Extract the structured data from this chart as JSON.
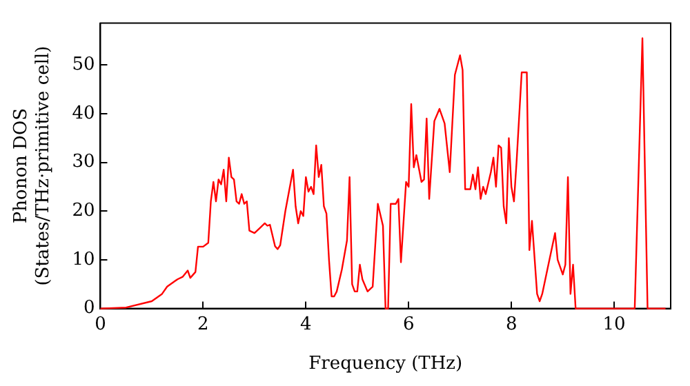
{
  "chart_data": {
    "type": "line",
    "xlabel": "Frequency (THz)",
    "ylabel": "Phonon DOS\n(States/THz·primitive cell)",
    "xlim": [
      0,
      11.1
    ],
    "ylim": [
      0,
      58.6
    ],
    "xticks": [
      0,
      2,
      4,
      6,
      8,
      10
    ],
    "yticks": [
      0,
      10,
      20,
      30,
      40,
      50
    ],
    "grid": false,
    "legend": false,
    "marker": "none",
    "line_style": "solid",
    "series": [
      {
        "color": "#ff0000",
        "x": [
          0,
          0.5,
          1.0,
          1.2,
          1.3,
          1.5,
          1.6,
          1.7,
          1.75,
          1.85,
          1.9,
          2.0,
          2.1,
          2.15,
          2.2,
          2.25,
          2.3,
          2.35,
          2.4,
          2.45,
          2.5,
          2.55,
          2.6,
          2.65,
          2.7,
          2.75,
          2.8,
          2.85,
          2.9,
          3.0,
          3.1,
          3.2,
          3.25,
          3.3,
          3.4,
          3.45,
          3.5,
          3.6,
          3.75,
          3.8,
          3.85,
          3.9,
          3.95,
          4.0,
          4.05,
          4.1,
          4.15,
          4.2,
          4.25,
          4.3,
          4.35,
          4.4,
          4.45,
          4.5,
          4.55,
          4.6,
          4.7,
          4.8,
          4.85,
          4.9,
          4.95,
          5.0,
          5.05,
          5.1,
          5.2,
          5.3,
          5.4,
          5.5,
          5.55,
          5.6,
          5.65,
          5.75,
          5.8,
          5.85,
          5.95,
          6.0,
          6.05,
          6.1,
          6.15,
          6.25,
          6.3,
          6.35,
          6.4,
          6.5,
          6.6,
          6.7,
          6.8,
          6.9,
          7.0,
          7.05,
          7.1,
          7.2,
          7.25,
          7.3,
          7.35,
          7.4,
          7.45,
          7.5,
          7.6,
          7.65,
          7.7,
          7.75,
          7.8,
          7.85,
          7.9,
          7.95,
          8.0,
          8.05,
          8.1,
          8.2,
          8.3,
          8.35,
          8.4,
          8.5,
          8.55,
          8.6,
          8.7,
          8.8,
          8.85,
          8.9,
          9.0,
          9.05,
          9.1,
          9.15,
          9.2,
          9.25,
          10.4,
          10.55,
          10.65,
          11.0
        ],
        "values": [
          0,
          0.2,
          1.5,
          3,
          4.5,
          6,
          6.5,
          7.8,
          6.3,
          7.5,
          12.7,
          12.7,
          13.5,
          22,
          26,
          22,
          26.5,
          25.5,
          28.5,
          22,
          31,
          27,
          26.5,
          22,
          21.5,
          23.5,
          21.5,
          22,
          16,
          15.5,
          16.5,
          17.5,
          17,
          17.2,
          12.8,
          12.2,
          13,
          20,
          28.5,
          21,
          17.5,
          20,
          19,
          27,
          24,
          25,
          23.5,
          33.5,
          27,
          29.5,
          21,
          19.5,
          10,
          2.5,
          2.5,
          3.5,
          8,
          14,
          27,
          5,
          3.5,
          3.5,
          9,
          6,
          3.5,
          4.5,
          21.5,
          17,
          0,
          0,
          21.5,
          21.5,
          22.5,
          9.5,
          26,
          25,
          42,
          29,
          31.5,
          26,
          26.5,
          39,
          22.5,
          38.5,
          41,
          38,
          28,
          48,
          52,
          49,
          24.5,
          24.5,
          27.5,
          24.5,
          29,
          22.5,
          25,
          23.5,
          28,
          31,
          25,
          33.5,
          33,
          21,
          17.5,
          35,
          25,
          22,
          30,
          48.5,
          48.5,
          12,
          18,
          3,
          1.5,
          3,
          8,
          13,
          15.5,
          10,
          7,
          9,
          27,
          3,
          9,
          0,
          0,
          55.5,
          0,
          0
        ]
      }
    ]
  }
}
